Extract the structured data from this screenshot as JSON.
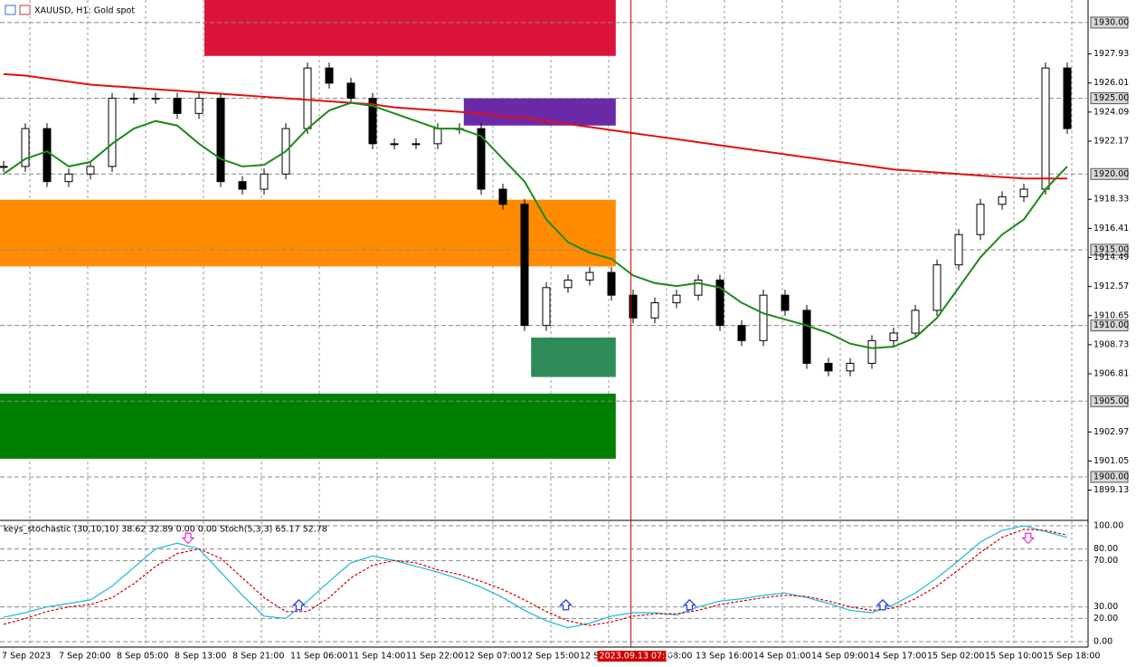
{
  "header": {
    "symbol_title": "XAUUSD, H1:  Gold spot"
  },
  "chart_data": [
    {
      "type": "candlestick",
      "close": [
        1920.5,
        1923,
        1919.5,
        1920,
        1920.5,
        1925,
        1925,
        1925,
        1924,
        1925,
        1919.5,
        1919,
        1920,
        1923,
        1927,
        1926,
        1925,
        1922,
        1922,
        1922,
        1923,
        1923,
        1919,
        1918,
        1910,
        1912.5,
        1913,
        1913.5,
        1912,
        1910.5,
        1911.5,
        1912,
        1913,
        1910,
        1909,
        1912,
        1911,
        1907.5,
        1907,
        1907.5,
        1909,
        1909.5,
        1911,
        1914,
        1916,
        1918,
        1918.5,
        1919,
        1927,
        1923
      ],
      "lines": [
        {
          "color": "#e01010",
          "values": [
            1926.6,
            1926.5,
            1926.3,
            1926.1,
            1925.9,
            1925.8,
            1925.7,
            1925.6,
            1925.5,
            1925.4,
            1925.3,
            1925.2,
            1925.1,
            1925.0,
            1924.9,
            1924.8,
            1924.7,
            1924.6,
            1924.4,
            1924.3,
            1924.2,
            1924.1,
            1924.0,
            1923.8,
            1923.7,
            1923.5,
            1923.3,
            1923.1,
            1922.9,
            1922.7,
            1922.5,
            1922.3,
            1922.1,
            1921.9,
            1921.7,
            1921.5,
            1921.3,
            1921.1,
            1920.9,
            1920.7,
            1920.5,
            1920.3,
            1920.2,
            1920.1,
            1920.0,
            1919.9,
            1919.8,
            1919.7,
            1919.7,
            1919.7
          ]
        },
        {
          "color": "#1a8a1a",
          "values": [
            1920,
            1921,
            1921.5,
            1920.5,
            1920.8,
            1922,
            1923,
            1923.5,
            1923.2,
            1922,
            1921,
            1920.5,
            1920.6,
            1921.5,
            1923,
            1924.2,
            1924.7,
            1924.5,
            1924,
            1923.5,
            1923,
            1923,
            1922.5,
            1921,
            1919.5,
            1917,
            1915.5,
            1914.8,
            1914.4,
            1913.3,
            1912.8,
            1912.6,
            1912.8,
            1912.5,
            1911.5,
            1910.8,
            1910.4,
            1910,
            1909.5,
            1908.8,
            1908.5,
            1908.6,
            1909.2,
            1910.5,
            1912.5,
            1914.5,
            1916,
            1917,
            1919,
            1920.5
          ]
        }
      ],
      "zones": [
        {
          "color": "#dc143c",
          "x": [
            9.25,
            28.2
          ],
          "y": [
            1931.5,
            1927.8
          ]
        },
        {
          "color": "#ff8c00",
          "x": [
            -0.2,
            28.2
          ],
          "y": [
            1918.3,
            1913.9
          ]
        },
        {
          "color": "#008000",
          "x": [
            -0.2,
            28.2
          ],
          "y": [
            1905.5,
            1901.2
          ]
        },
        {
          "color": "#6a2aa8",
          "x": [
            21.2,
            28.2
          ],
          "y": [
            1925,
            1923.2
          ]
        },
        {
          "color": "#2e8b57",
          "x": [
            24.3,
            28.2
          ],
          "y": [
            1909.2,
            1906.6
          ]
        }
      ],
      "cursor": {
        "x": 28.9,
        "label": "2023.09.13 07:25"
      },
      "x_labels": [
        "7 Sep 2023",
        "7 Sep 20:00",
        "8 Sep 05:00",
        "8 Sep 13:00",
        "8 Sep 21:00",
        "11 Sep 06:00",
        "11 Sep 14:00",
        "11 Sep 22:00",
        "12 Sep 07:00",
        "12 Sep 15:00",
        "12 S",
        "08:00",
        "13 Sep 16:00",
        "14 Sep 01:00",
        "14 Sep 09:00",
        "14 Sep 17:00",
        "15 Sep 02:00",
        "15 Sep 10:00",
        "15 Sep 18:00"
      ],
      "ylim": [
        1897.25,
        1931.49
      ],
      "yticks": [
        {
          "value": 1930,
          "label": "1930.00"
        },
        1927.93,
        1926.01,
        {
          "value": 1925,
          "label": "1925.00"
        },
        1924.09,
        1922.17,
        {
          "value": 1920,
          "label": "1920.00"
        },
        1918.33,
        1916.41,
        {
          "value": 1915,
          "label": "1915.00"
        },
        1914.49,
        1912.57,
        1910.65,
        {
          "value": 1910,
          "label": "1910.00"
        },
        1908.73,
        1906.81,
        {
          "value": 1905,
          "label": "1905.00"
        },
        1902.97,
        1901.05,
        {
          "value": 1900,
          "label": "1900.00"
        },
        1899.13
      ]
    },
    {
      "type": "line",
      "title": "keys_stochastic (30,10,10) 38.62 32.89 0.00 0.00 Stoch(5,3,3) 65.17 52.78",
      "series": [
        {
          "color": "#1fb8d8",
          "values": [
            21,
            25,
            30,
            33,
            36,
            48,
            64,
            80,
            85,
            80,
            60,
            40,
            22,
            20,
            35,
            52,
            68,
            74,
            70,
            65,
            60,
            54,
            47,
            38,
            27,
            18,
            12,
            16,
            22,
            25,
            25,
            23,
            30,
            35,
            37,
            40,
            42,
            38,
            33,
            27,
            25,
            32,
            42,
            55,
            70,
            86,
            96,
            100,
            95,
            90
          ]
        },
        {
          "color": "#d00000",
          "dash": true,
          "values": [
            15,
            20,
            26,
            30,
            32,
            38,
            50,
            65,
            76,
            80,
            72,
            55,
            38,
            26,
            26,
            38,
            55,
            66,
            70,
            68,
            62,
            58,
            52,
            45,
            36,
            26,
            18,
            14,
            17,
            22,
            24,
            24,
            27,
            32,
            35,
            38,
            40,
            39,
            35,
            30,
            27,
            29,
            37,
            48,
            62,
            77,
            90,
            97,
            96,
            92
          ]
        }
      ],
      "signals": [
        {
          "x": 8.5,
          "dir": "down"
        },
        {
          "x": 13.6,
          "dir": "up"
        },
        {
          "x": 25.9,
          "dir": "up"
        },
        {
          "x": 31.6,
          "dir": "up"
        },
        {
          "x": 40.5,
          "dir": "up"
        },
        {
          "x": 47.2,
          "dir": "down"
        }
      ],
      "ylim": [
        -4.7,
        103.1
      ],
      "yticks": [
        {
          "value": 100,
          "label": "100.00"
        },
        {
          "value": 80,
          "label": "80.00"
        },
        {
          "value": 70,
          "label": "70.00"
        },
        {
          "value": 30,
          "label": "30.00"
        },
        {
          "value": 20,
          "label": "20.00"
        },
        {
          "value": 0,
          "label": "0.00"
        }
      ]
    }
  ]
}
